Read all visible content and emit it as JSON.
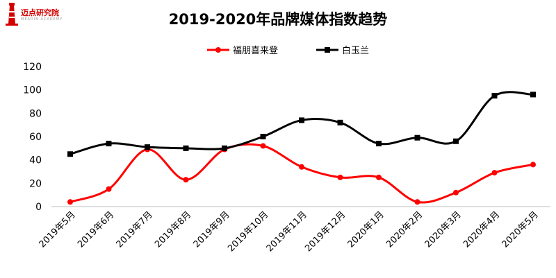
{
  "logo": {
    "text": "迈点研究院",
    "sub": "MEADIN ACADEMY"
  },
  "colors": {
    "series1": "#ff0000",
    "series2": "#000000",
    "axis": "#bfbfbf",
    "brand": "#d40000"
  },
  "chart_data": {
    "type": "line",
    "title": "2019-2020年品牌媒体指数趋势",
    "xlabel": "",
    "ylabel": "",
    "ylim": [
      0,
      120
    ],
    "yticks": [
      "0",
      "20",
      "40",
      "60",
      "80",
      "100",
      "120"
    ],
    "grid": false,
    "legend": "top",
    "categories": [
      "2019年5月",
      "2019年6月",
      "2019年7月",
      "2019年8月",
      "2019年9月",
      "2019年10月",
      "2019年11月",
      "2019年12月",
      "2020年1月",
      "2020年2月",
      "2020年3月",
      "2020年4月",
      "2020年5月"
    ],
    "series": [
      {
        "name": "福朋喜来登",
        "marker": "circle",
        "values": [
          4,
          15,
          49,
          23,
          49,
          52,
          34,
          25,
          25,
          4,
          12,
          29,
          36
        ]
      },
      {
        "name": "白玉兰",
        "marker": "square",
        "values": [
          45,
          54,
          51,
          50,
          50,
          60,
          74,
          72,
          54,
          59,
          56,
          95,
          96
        ]
      }
    ]
  }
}
